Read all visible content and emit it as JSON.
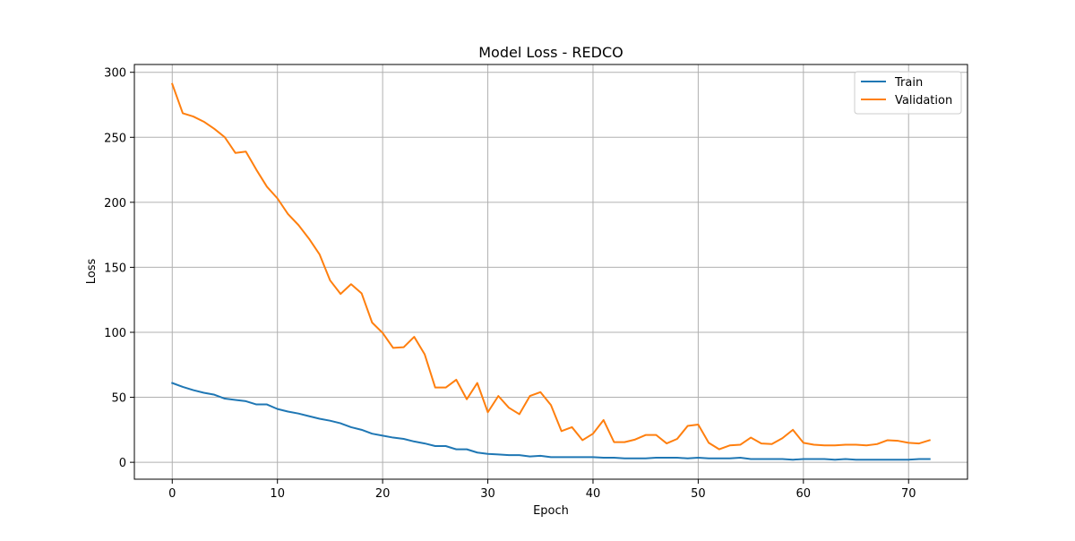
{
  "chart_data": {
    "type": "line",
    "title": "Model Loss - REDCO",
    "xlabel": "Epoch",
    "ylabel": "Loss",
    "xlim": [
      -3.6,
      75.6
    ],
    "ylim": [
      -13,
      306
    ],
    "xticks": [
      0,
      10,
      20,
      30,
      40,
      50,
      60,
      70
    ],
    "yticks": [
      0,
      50,
      100,
      150,
      200,
      250,
      300
    ],
    "grid": true,
    "legend_position": "top-right",
    "x": [
      0,
      1,
      2,
      3,
      4,
      5,
      6,
      7,
      8,
      9,
      10,
      11,
      12,
      13,
      14,
      15,
      16,
      17,
      18,
      19,
      20,
      21,
      22,
      23,
      24,
      25,
      26,
      27,
      28,
      29,
      30,
      31,
      32,
      33,
      34,
      35,
      36,
      37,
      38,
      39,
      40,
      41,
      42,
      43,
      44,
      45,
      46,
      47,
      48,
      49,
      50,
      51,
      52,
      53,
      54,
      55,
      56,
      57,
      58,
      59,
      60,
      61,
      62,
      63,
      64,
      65,
      66,
      67,
      68,
      69,
      70,
      71,
      72
    ],
    "series": [
      {
        "name": "Train",
        "color": "#1f77b4",
        "values": [
          61,
          58,
          55.5,
          53.5,
          52,
          49,
          48,
          47,
          44.5,
          44.5,
          41,
          39,
          37.5,
          35.5,
          33.5,
          32,
          30,
          27,
          25,
          22,
          20.5,
          19,
          18,
          16,
          14.5,
          12.5,
          12.5,
          10,
          10,
          7.5,
          6.5,
          6,
          5.5,
          5.5,
          4.5,
          5,
          4,
          4,
          4,
          4,
          4,
          3.5,
          3.5,
          3,
          3,
          3,
          3.5,
          3.5,
          3.5,
          3,
          3.5,
          3,
          3,
          3,
          3.5,
          2.5,
          2.5,
          2.5,
          2.5,
          2,
          2.5,
          2.5,
          2.5,
          2,
          2.5,
          2,
          2,
          2,
          2,
          2,
          2,
          2.5,
          2.5
        ]
      },
      {
        "name": "Validation",
        "color": "#ff7f0e",
        "values": [
          291,
          268.5,
          266,
          262,
          256.5,
          250,
          238,
          239,
          225,
          212,
          203,
          191,
          182.5,
          172,
          160,
          140,
          129.5,
          137,
          130,
          107.5,
          99.5,
          88,
          88.5,
          96.5,
          83,
          57.5,
          57.5,
          63.5,
          48.5,
          61,
          38.5,
          51,
          42,
          37,
          51,
          54,
          44,
          24,
          27,
          17,
          22,
          32.5,
          15.5,
          15.5,
          17.5,
          21,
          21,
          14.5,
          18,
          28,
          29,
          15,
          10,
          13,
          13.5,
          19,
          14.5,
          14,
          18.5,
          25,
          15,
          13.5,
          13,
          13,
          13.5,
          13.5,
          13,
          14,
          17,
          16.5,
          15,
          14.5,
          17
        ]
      }
    ]
  }
}
